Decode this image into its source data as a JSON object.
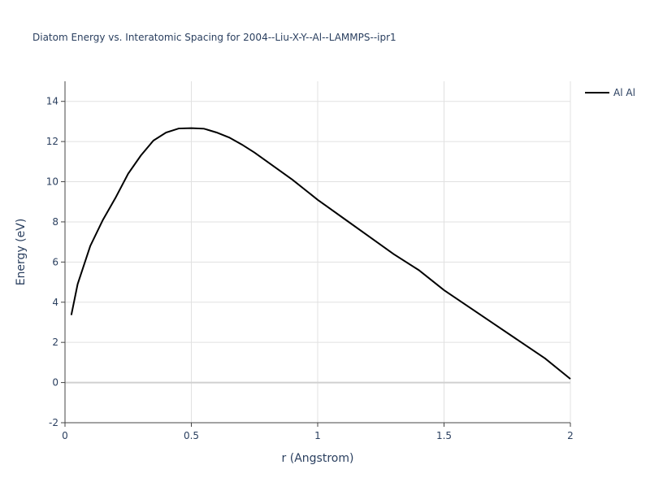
{
  "chart_data": {
    "type": "line",
    "title": "Diatom Energy vs. Interatomic Spacing for 2004--Liu-X-Y--Al--LAMMPS--ipr1",
    "x_label": "r (Angstrom)",
    "y_label": "Energy (eV)",
    "x": [
      0.025,
      0.05,
      0.1,
      0.15,
      0.2,
      0.25,
      0.3,
      0.35,
      0.4,
      0.45,
      0.5,
      0.55,
      0.6,
      0.65,
      0.7,
      0.75,
      0.8,
      0.9,
      1.0,
      1.1,
      1.2,
      1.3,
      1.4,
      1.5,
      1.6,
      1.7,
      1.8,
      1.9,
      2.0
    ],
    "series": [
      {
        "name": "Al Al",
        "color": "#000000",
        "values": [
          3.36,
          4.9,
          6.8,
          8.1,
          9.2,
          10.4,
          11.3,
          12.05,
          12.45,
          12.65,
          12.67,
          12.64,
          12.45,
          12.2,
          11.85,
          11.45,
          11.0,
          10.1,
          9.1,
          8.2,
          7.3,
          6.4,
          5.6,
          4.6,
          3.75,
          2.9,
          2.05,
          1.2,
          0.18
        ]
      }
    ],
    "xlim": [
      0,
      2
    ],
    "ylim": [
      -2,
      15
    ],
    "xticks": [
      0,
      0.5,
      1,
      1.5,
      2
    ],
    "yticks": [
      -2,
      0,
      2,
      4,
      6,
      8,
      10,
      12,
      14
    ],
    "grid": true,
    "legend": "right"
  }
}
